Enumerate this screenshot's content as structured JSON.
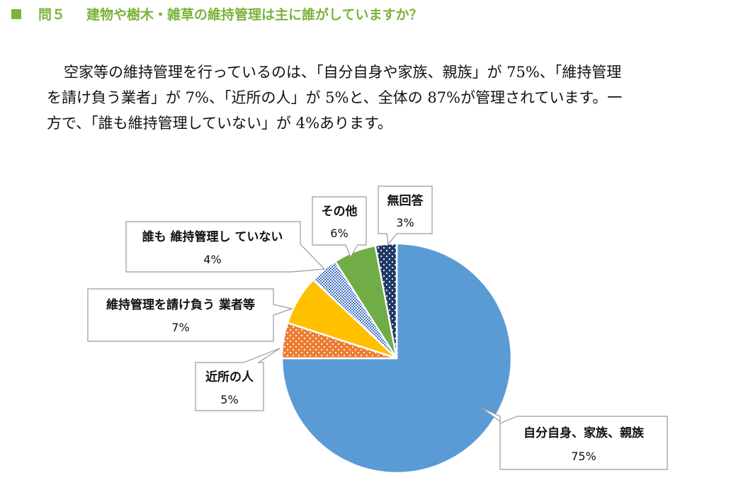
{
  "heading": {
    "number": "問５",
    "question": "建物や樹木・雑草の維持管理は主に誰がしていますか？",
    "accent": "#7ab33b"
  },
  "body": {
    "lines": [
      "空家等の維持管理を行っているのは、「自分自身や家族、親族」が 75%、「維持管理",
      "を請け負う業者」が 7%、「近所の人」が 5%と、全体の 87%が管理されています。一",
      "方で、「誰も維持管理していない」が 4%あります。"
    ]
  },
  "chart_data": {
    "type": "pie",
    "start_angle_deg": 0,
    "direction": "clockwise",
    "slices": [
      {
        "label": "自分自身、家族、親族",
        "value": 75,
        "value_label": "75%",
        "color": "#5b9bd5",
        "pattern": "solid"
      },
      {
        "label": "近所の人",
        "value": 5,
        "value_label": "5%",
        "color": "#ed7d31",
        "pattern": "dots"
      },
      {
        "label": "維持管理を請け負う 業者等",
        "value": 7,
        "value_label": "7%",
        "color": "#ffc000",
        "pattern": "solid"
      },
      {
        "label": "誰も 維持管理し ていない",
        "value": 4,
        "value_label": "4%",
        "color": "#4472c4",
        "pattern": "checker"
      },
      {
        "label": "その他",
        "value": 6,
        "value_label": "6%",
        "color": "#70ad47",
        "pattern": "solid"
      },
      {
        "label": "無回答",
        "value": 3,
        "value_label": "3%",
        "color": "#203864",
        "pattern": "dots"
      }
    ]
  }
}
